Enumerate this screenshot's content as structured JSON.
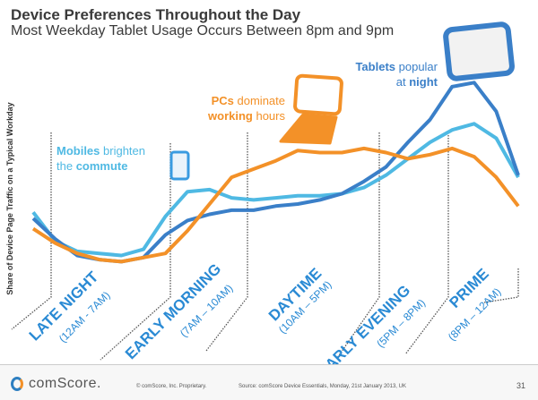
{
  "header": {
    "title": "Device Preferences Throughout the Day",
    "subtitle": "Most Weekday Tablet Usage Occurs Between 8pm and 9pm"
  },
  "chart_data": {
    "type": "line",
    "title": "Device Preferences Throughout the Day",
    "subtitle": "Most Weekday Tablet Usage Occurs Between 8pm and 9pm",
    "ylabel": "Share of Device Page Traffic on a Typical Workday",
    "xlabel": "",
    "y_scale_note_visible": false,
    "grid": false,
    "x_points": 23,
    "ylim": [
      0,
      100
    ],
    "series": [
      {
        "key": "mobile",
        "color": "#4fb9e3",
        "values": [
          36,
          22,
          17,
          16,
          15,
          18,
          34,
          46,
          47,
          43,
          42,
          43,
          44,
          44,
          45,
          48,
          54,
          62,
          70,
          76,
          79,
          72,
          53
        ]
      },
      {
        "key": "tablet",
        "color": "#3a7fc8",
        "values": [
          33,
          23,
          15,
          13,
          12,
          14,
          25,
          32,
          35,
          37,
          37,
          39,
          40,
          42,
          45,
          51,
          58,
          70,
          81,
          97,
          99,
          85,
          54
        ]
      },
      {
        "key": "pc",
        "color": "#f39128",
        "values": [
          28,
          21,
          16,
          13,
          12,
          14,
          16,
          27,
          40,
          53,
          57,
          61,
          66,
          65,
          65,
          67,
          65,
          62,
          64,
          67,
          63,
          53,
          39
        ]
      }
    ],
    "segments": [
      {
        "name": "LATE NIGHT",
        "range": "(12AM - 7AM)"
      },
      {
        "name": "EARLY MORNING",
        "range": "(7AM – 10AM)"
      },
      {
        "name": "DAYTIME",
        "range": "(10AM – 5PM)"
      },
      {
        "name": "EARLY EVENING",
        "range": "(5PM – 8PM)"
      },
      {
        "name": "PRIME",
        "range": "(8PM – 12AM)"
      }
    ],
    "annotations": {
      "mobile": {
        "bold1": "Mobiles",
        "text1": " brighten",
        "text2": "the ",
        "bold2": "commute"
      },
      "pc": {
        "bold1": "PCs",
        "text1": " dominate",
        "bold2": "working",
        "text2": " hours"
      },
      "tablet": {
        "bold1": "Tablets",
        "text1": " popular",
        "text2": "at ",
        "bold2": "night"
      }
    }
  },
  "footer": {
    "brand": "comScore.",
    "copyright": "© comScore, Inc.   Proprietary.",
    "source": "Source: comScore Device Essentials, Monday, 21st January 2013, UK",
    "page": "31"
  }
}
